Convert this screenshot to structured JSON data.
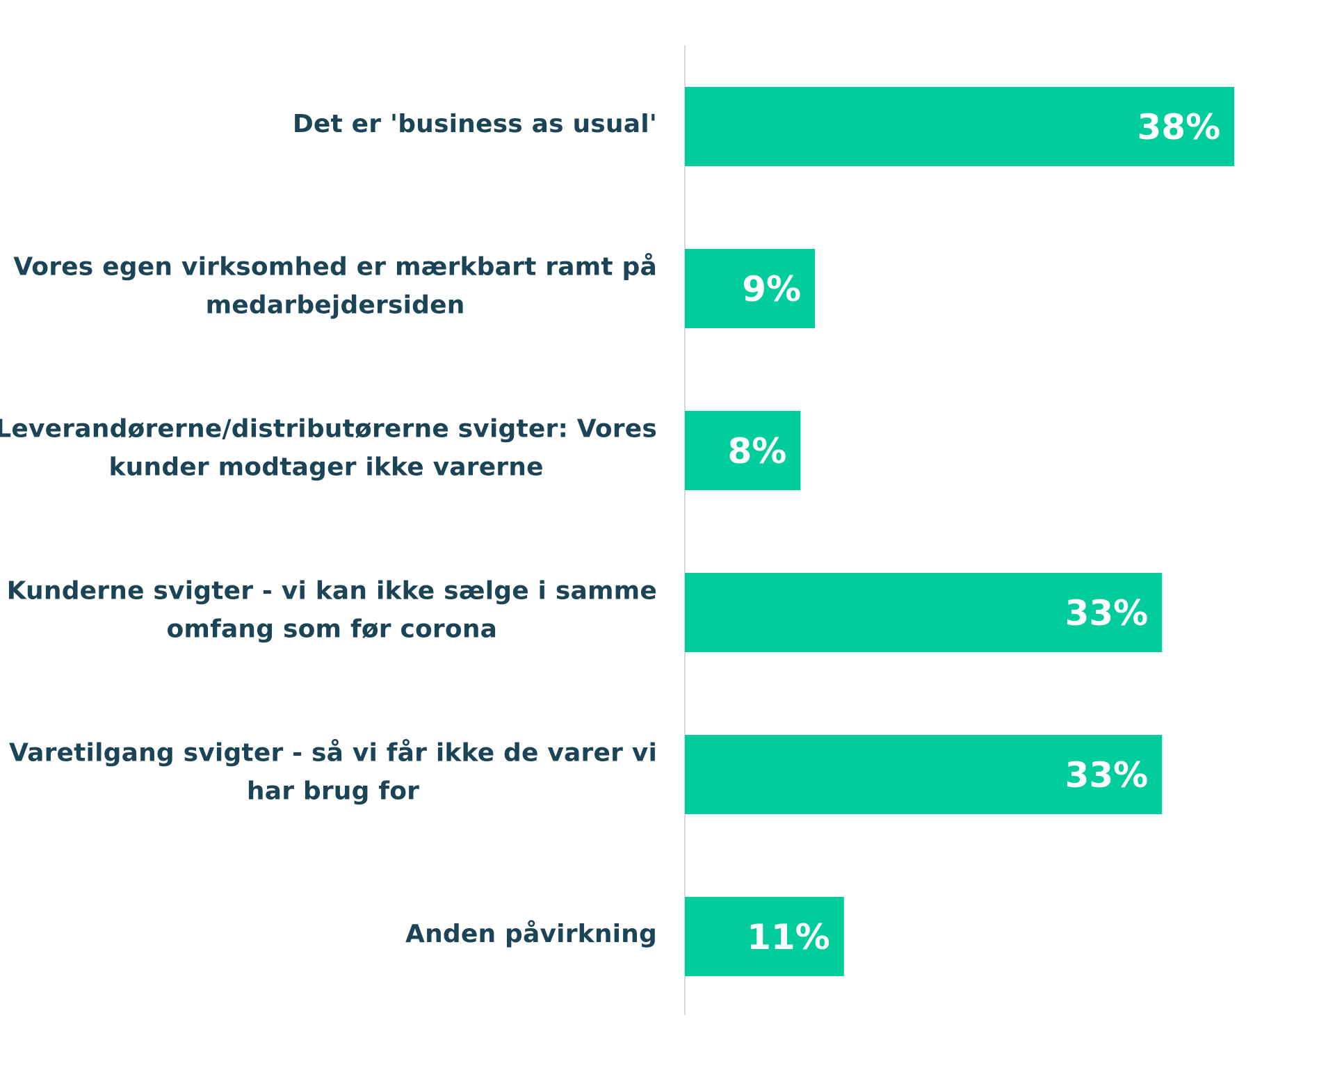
{
  "chart_data": {
    "type": "bar",
    "orientation": "horizontal",
    "categories": [
      [
        "Det er 'business as usual'"
      ],
      [
        "Vores egen virksomhed er mærkbart ramt på",
        "medarbejdersiden"
      ],
      [
        "Leverandørerne/distributørerne svigter: Vores",
        "kunder modtager ikke varerne"
      ],
      [
        "Kunderne svigter - vi kan ikke sælge i samme",
        "omfang som før corona"
      ],
      [
        "Varetilgang svigter - så vi får ikke de varer vi",
        "har brug for"
      ],
      [
        "Anden påvirkning"
      ]
    ],
    "values": [
      38,
      9,
      8,
      33,
      33,
      11
    ],
    "data_labels": [
      "38%",
      "9%",
      "8%",
      "33%",
      "33%",
      "11%"
    ],
    "unit": "%",
    "xlim": [
      0,
      44
    ],
    "grid": false,
    "legend": "none",
    "colors": {
      "bar": "#00CC9C",
      "category_text": "#1B4457",
      "value_text": "#FFFFFF",
      "axis_line": "#D9D9D9"
    }
  }
}
